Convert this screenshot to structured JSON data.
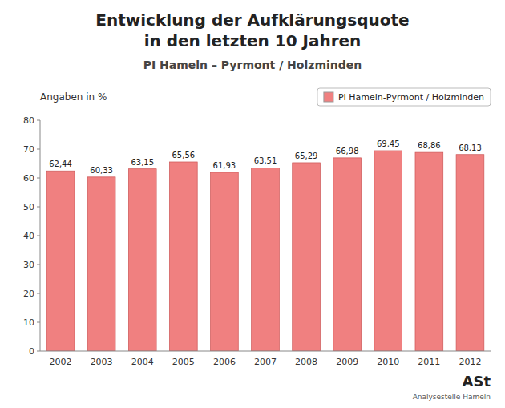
{
  "chart_data": {
    "type": "bar",
    "title": [
      "Entwicklung der Aufklärungsquote",
      "in den letzten 10 Jahren"
    ],
    "subtitle": "PI Hameln – Pyrmont / Holzminden",
    "annotations": [
      "Angaben in %",
      "ASt",
      "Analysestelle Hameln"
    ],
    "categories": [
      "2002",
      "2003",
      "2004",
      "2005",
      "2006",
      "2007",
      "2008",
      "2009",
      "2010",
      "2011",
      "2012"
    ],
    "series": [
      {
        "name": "PI Hameln-Pyrmont / Holzminden",
        "color": "#F08080",
        "values": [
          62.44,
          60.33,
          63.15,
          65.56,
          61.93,
          63.51,
          65.29,
          66.98,
          69.45,
          68.86,
          68.13
        ],
        "value_labels": [
          "62,44",
          "60,33",
          "63,15",
          "65,56",
          "61,93",
          "63,51",
          "65,29",
          "66,98",
          "69,45",
          "68,86",
          "68,13"
        ]
      }
    ],
    "ylim": [
      0,
      80
    ],
    "yticks": [
      0,
      10,
      20,
      30,
      40,
      50,
      60,
      70,
      80
    ],
    "grid": false,
    "legend": "right",
    "data_labels": true
  }
}
